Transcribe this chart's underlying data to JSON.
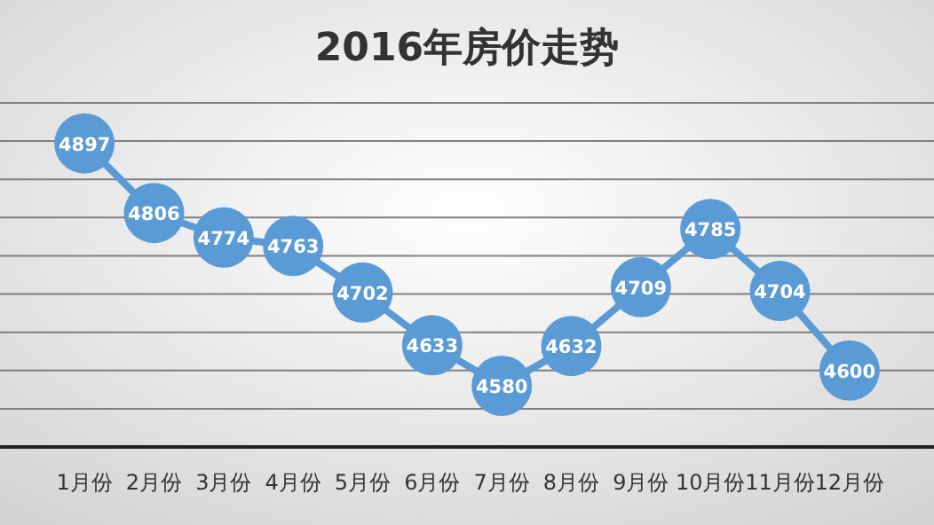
{
  "chart_data": {
    "type": "line",
    "title": "2016年房价走势",
    "categories": [
      "1月份",
      "2月份",
      "3月份",
      "4月份",
      "5月份",
      "6月份",
      "7月份",
      "8月份",
      "9月份",
      "10月份",
      "11月份",
      "12月份"
    ],
    "series": [
      {
        "color": "#5b9bd5",
        "values": [
          4897,
          4806,
          4774,
          4763,
          4702,
          4633,
          4580,
          4632,
          4709,
          4785,
          4704,
          4600
        ]
      }
    ],
    "ylim": [
      4500,
      4950
    ],
    "yticks": [
      {
        "value": 4500,
        "label": null
      },
      {
        "value": 4550,
        "label": null
      },
      {
        "value": 4600,
        "label": null
      },
      {
        "value": 4650,
        "label": null
      },
      {
        "value": 4700,
        "label": null
      },
      {
        "value": 4750,
        "label": null
      },
      {
        "value": 4800,
        "label": null
      },
      {
        "value": 4850,
        "label": null
      },
      {
        "value": 4900,
        "label": null
      },
      {
        "value": 4950,
        "label": null
      }
    ],
    "grid": "y",
    "marker": "circle",
    "line_style": "solid",
    "data_labels": true
  }
}
